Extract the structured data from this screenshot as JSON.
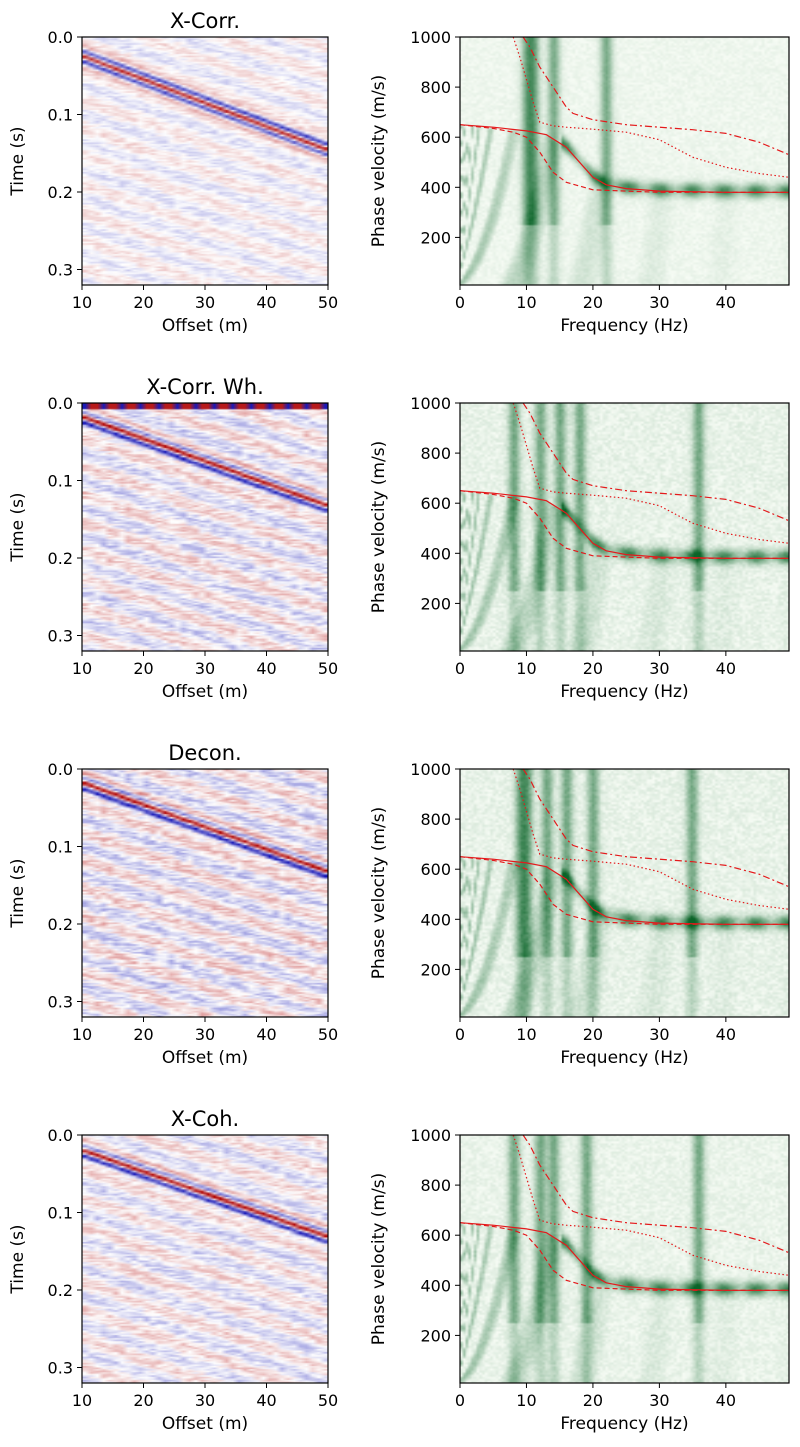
{
  "figure": {
    "rows": [
      {
        "title": "X-Corr.",
        "gather": {
          "main_slope_s_per_m": 0.00298,
          "main_t0_s": 0.013,
          "noise": 0.35,
          "top_band": false
        },
        "spectrum": {
          "vertical_bands_hz": [
            10,
            11,
            14,
            22
          ],
          "noise": 0.2
        }
      },
      {
        "title": "X-Corr. Wh.",
        "gather": {
          "main_slope_s_per_m": 0.00283,
          "main_t0_s": 0.006,
          "noise": 0.55,
          "top_band": true
        },
        "spectrum": {
          "vertical_bands_hz": [
            8,
            12,
            15,
            18,
            36
          ],
          "noise": 0.35
        }
      },
      {
        "title": "Decon.",
        "gather": {
          "main_slope_s_per_m": 0.00283,
          "main_t0_s": 0.006,
          "noise": 0.6,
          "top_band": false
        },
        "spectrum": {
          "vertical_bands_hz": [
            9,
            10,
            13,
            16,
            20,
            35
          ],
          "noise": 0.35
        }
      },
      {
        "title": "X-Coh.",
        "gather": {
          "main_slope_s_per_m": 0.00275,
          "main_t0_s": 0.008,
          "noise": 0.5,
          "top_band": false
        },
        "spectrum": {
          "vertical_bands_hz": [
            8,
            12,
            14,
            19,
            36
          ],
          "noise": 0.3
        }
      }
    ],
    "gather_axes": {
      "xlabel": "Offset (m)",
      "ylabel": "Time (s)",
      "xlim": [
        10,
        50
      ],
      "ylim": [
        0.0,
        0.32
      ],
      "xticks": [
        "10",
        "20",
        "30",
        "40",
        "50"
      ],
      "yticks": [
        "0.0",
        "0.1",
        "0.2",
        "0.3"
      ]
    },
    "spectrum_axes": {
      "xlabel": "Frequency (Hz)",
      "ylabel": "Phase velocity (m/s)",
      "xlim": [
        0,
        49.5
      ],
      "ylim": [
        10,
        1000
      ],
      "xticks": [
        "0",
        "10",
        "20",
        "30",
        "40"
      ],
      "yticks": [
        "200",
        "400",
        "600",
        "800",
        "1000"
      ]
    },
    "colors": {
      "red": "#d62728",
      "blue": "#1f3bd0",
      "green": "#0a6b2a",
      "curve": "#e41a1c"
    }
  },
  "chart_data": {
    "type": "heatmap",
    "panels": [
      {
        "kind": "gather",
        "title": "X-Corr.",
        "xlabel": "Offset (m)",
        "ylabel": "Time (s)",
        "xlim": [
          10,
          50
        ],
        "ylim": [
          0.0,
          0.32
        ]
      },
      {
        "kind": "dispersion",
        "title": "",
        "xlabel": "Frequency (Hz)",
        "ylabel": "Phase velocity (m/s)",
        "xlim": [
          0,
          49.5
        ],
        "ylim": [
          10,
          1000
        ]
      },
      {
        "kind": "gather",
        "title": "X-Corr. Wh.",
        "xlabel": "Offset (m)",
        "ylabel": "Time (s)",
        "xlim": [
          10,
          50
        ],
        "ylim": [
          0.0,
          0.32
        ]
      },
      {
        "kind": "dispersion",
        "title": "",
        "xlabel": "Frequency (Hz)",
        "ylabel": "Phase velocity (m/s)",
        "xlim": [
          0,
          49.5
        ],
        "ylim": [
          10,
          1000
        ]
      },
      {
        "kind": "gather",
        "title": "Decon.",
        "xlabel": "Offset (m)",
        "ylabel": "Time (s)",
        "xlim": [
          10,
          50
        ],
        "ylim": [
          0.0,
          0.32
        ]
      },
      {
        "kind": "dispersion",
        "title": "",
        "xlabel": "Frequency (Hz)",
        "ylabel": "Phase velocity (m/s)",
        "xlim": [
          0,
          49.5
        ],
        "ylim": [
          10,
          1000
        ]
      },
      {
        "kind": "gather",
        "title": "X-Coh.",
        "xlabel": "Offset (m)",
        "ylabel": "Time (s)",
        "xlim": [
          10,
          50
        ],
        "ylim": [
          0.0,
          0.32
        ]
      },
      {
        "kind": "dispersion",
        "title": "",
        "xlabel": "Frequency (Hz)",
        "ylabel": "Phase velocity (m/s)",
        "xlim": [
          0,
          49.5
        ],
        "ylim": [
          10,
          1000
        ]
      }
    ],
    "theoretical_modes": [
      {
        "name": "fundamental",
        "style": "solid",
        "x": [
          0,
          5,
          10,
          13,
          16,
          18,
          20,
          22,
          25,
          30,
          40,
          49.5
        ],
        "y": [
          650,
          640,
          625,
          610,
          560,
          500,
          440,
          410,
          395,
          385,
          380,
          380
        ]
      },
      {
        "name": "fundamental-alt",
        "style": "dashed",
        "x": [
          0,
          5,
          8,
          10,
          12,
          14,
          16,
          20,
          25,
          30,
          40,
          49.5
        ],
        "y": [
          650,
          635,
          620,
          600,
          540,
          460,
          420,
          390,
          385,
          380,
          380,
          380
        ]
      },
      {
        "name": "first-higher",
        "style": "dashdot",
        "x": [
          9.5,
          10.5,
          12,
          14,
          16,
          17,
          20,
          25,
          30,
          35,
          40,
          45,
          49.5
        ],
        "y": [
          1000,
          960,
          880,
          800,
          720,
          695,
          670,
          650,
          640,
          630,
          615,
          580,
          530
        ]
      },
      {
        "name": "first-higher-alt",
        "style": "dotted",
        "x": [
          8,
          9,
          10,
          11,
          12,
          14,
          16,
          20,
          25,
          30,
          35,
          40,
          45,
          49.5
        ],
        "y": [
          1000,
          920,
          830,
          740,
          660,
          645,
          640,
          632,
          620,
          590,
          520,
          480,
          455,
          440
        ]
      }
    ]
  }
}
